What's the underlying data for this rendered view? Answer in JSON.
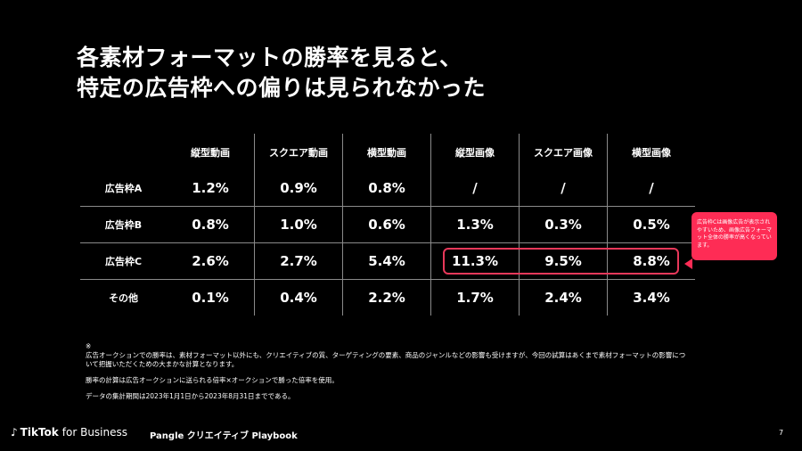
{
  "title": {
    "line1": "各素材フォーマットの勝率を見ると、",
    "line2": "特定の広告枠への偏りは見られなかった"
  },
  "table": {
    "columns": [
      "縦型動画",
      "スクエア動画",
      "横型動画",
      "縦型画像",
      "スクエア画像",
      "横型画像"
    ],
    "rows": [
      {
        "label": "広告枠A",
        "values": [
          "1.2%",
          "0.9%",
          "0.8%",
          "/",
          "/",
          "/"
        ]
      },
      {
        "label": "広告枠B",
        "values": [
          "0.8%",
          "1.0%",
          "0.6%",
          "1.3%",
          "0.3%",
          "0.5%"
        ]
      },
      {
        "label": "広告枠C",
        "values": [
          "2.6%",
          "2.7%",
          "5.4%",
          "11.3%",
          "9.5%",
          "8.8%"
        ]
      },
      {
        "label": "その他",
        "values": [
          "0.1%",
          "0.4%",
          "2.2%",
          "1.7%",
          "2.4%",
          "3.4%"
        ]
      }
    ]
  },
  "callout": {
    "text": "広告枠Cは画像広告が表示されやすいため、画像広告フォーマット全体の勝率が高くなっています。",
    "color": "#fe2c55"
  },
  "notes": {
    "mark": "※",
    "line1": "広告オークションでの勝率は、素材フォーマット以外にも、クリエイティブの質、ターゲティングの要素、商品のジャンルなどの影響も受けますが、今回の試算はあくまで素材フォーマットの影響について把握いただくための大まかな計算となります。",
    "line2": "勝率の計算は広告オークションに送られる倍率×オークションで勝った倍率を使用。",
    "line3": "データの集計期間は2023年1月1日から2023年8月31日までである。"
  },
  "footer": {
    "brand": "TikTok",
    "brand_suffix": "for Business",
    "playbook": "Pangle クリエイティブ Playbook",
    "page_number": "7"
  }
}
